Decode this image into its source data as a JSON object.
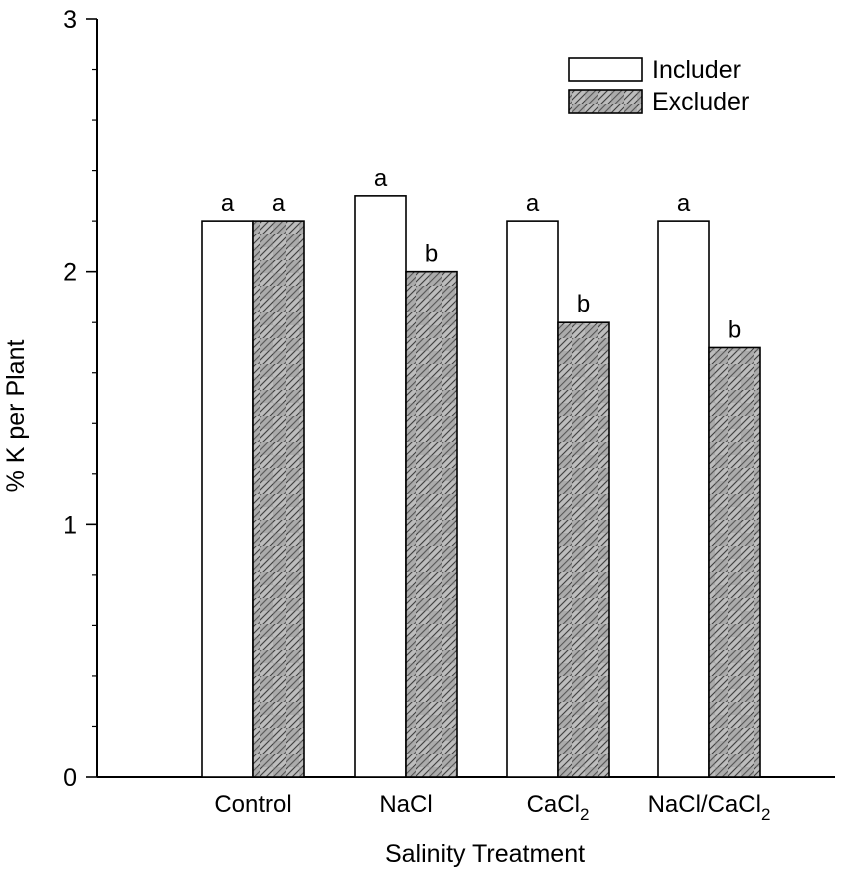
{
  "chart_data": {
    "type": "bar",
    "title": "",
    "xlabel": "Salinity Treatment",
    "ylabel": "% K per Plant",
    "ylim": [
      0,
      3
    ],
    "yticks": [
      "0",
      "1",
      "2",
      "3"
    ],
    "categories": [
      {
        "base": "Control",
        "sub": "",
        "tail": "",
        "sub2": ""
      },
      {
        "base": "NaCl",
        "sub": "",
        "tail": "",
        "sub2": ""
      },
      {
        "base": "CaCl",
        "sub": "2",
        "tail": "",
        "sub2": ""
      },
      {
        "base": "NaCl/CaCl",
        "sub": "2",
        "tail": "",
        "sub2": ""
      }
    ],
    "series": [
      {
        "name": "Includer",
        "values": [
          2.2,
          2.3,
          2.2,
          2.2
        ],
        "letters": [
          "a",
          "a",
          "a",
          "a"
        ],
        "fill": "#ffffff"
      },
      {
        "name": "Excluder",
        "values": [
          2.2,
          2.0,
          1.8,
          1.7
        ],
        "letters": [
          "a",
          "b",
          "b",
          "b"
        ],
        "fill": "hatched-gray"
      }
    ],
    "legend_position": "top-right",
    "grid": false
  }
}
